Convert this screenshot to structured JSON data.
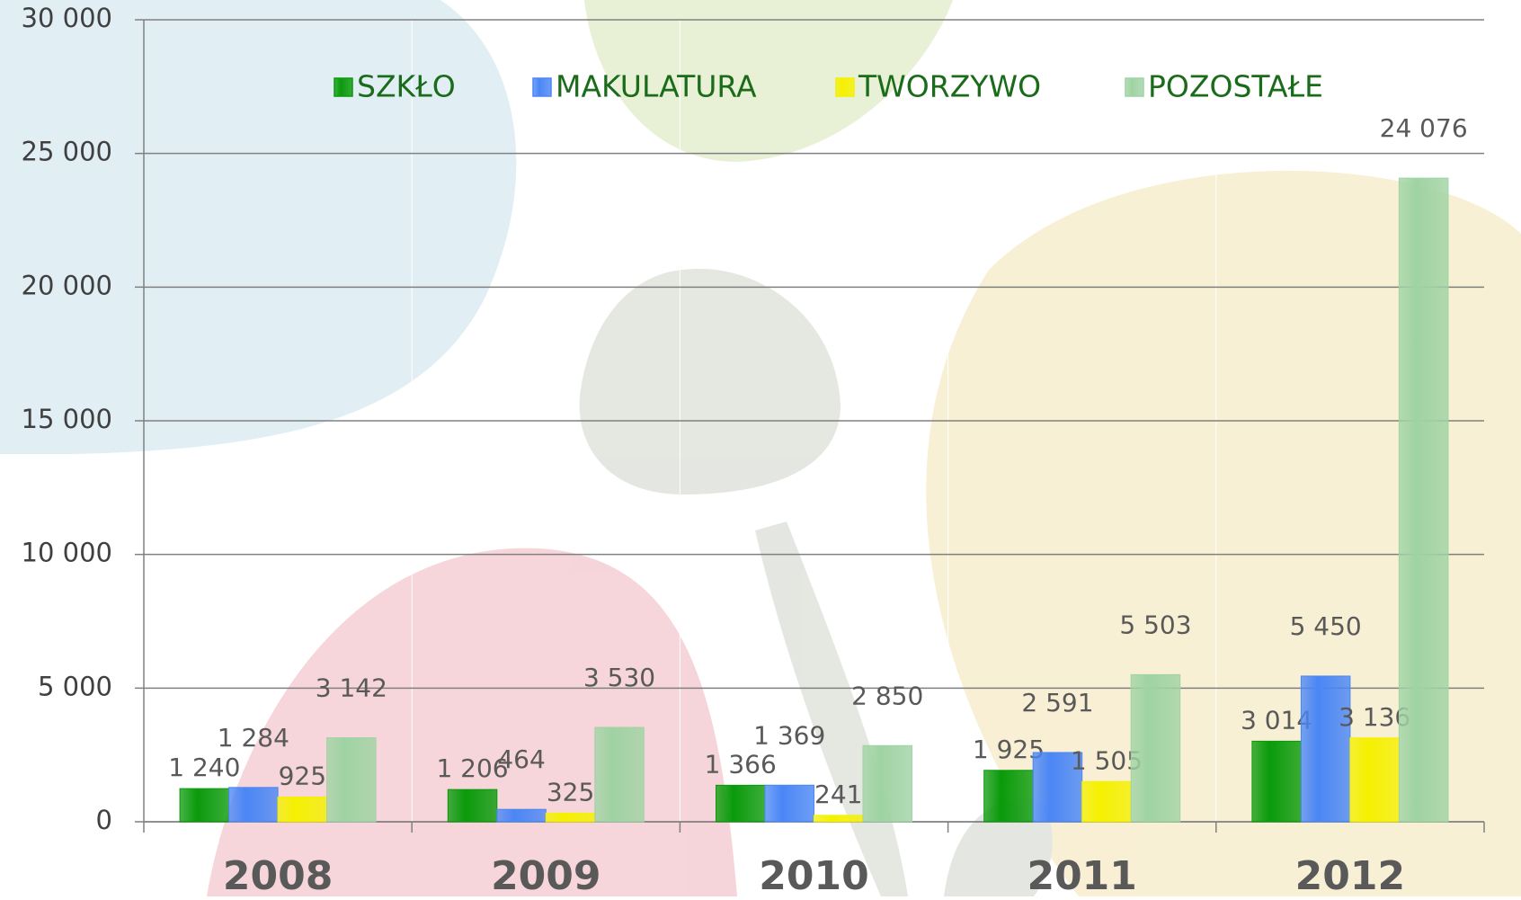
{
  "chart_data": {
    "type": "bar",
    "categories": [
      "2008",
      "2009",
      "2010",
      "2011",
      "2012"
    ],
    "series": [
      {
        "name": "SZKŁO",
        "color": "#0a9a0a",
        "values": [
          1240,
          1206,
          1366,
          1925,
          3014
        ],
        "value_labels": [
          "1 240",
          "1 206",
          "1 366",
          "1 925",
          "3 014"
        ]
      },
      {
        "name": "MAKULATURA",
        "color": "#4a86f5",
        "values": [
          1284,
          464,
          1369,
          2591,
          5450
        ],
        "value_labels": [
          "1 284",
          "464",
          "1 369",
          "2 591",
          "5 450"
        ]
      },
      {
        "name": "TWORZYWO",
        "color": "#f5f000",
        "values": [
          925,
          325,
          241,
          1505,
          3136
        ],
        "value_labels": [
          "925",
          "325",
          "241",
          "1 505",
          "3 136"
        ]
      },
      {
        "name": "POZOSTAŁE",
        "color": "#9fd3a3",
        "values": [
          3142,
          3530,
          2850,
          5503,
          24076
        ],
        "value_labels": [
          "3 142",
          "3 530",
          "2 850",
          "5 503",
          "24 076"
        ]
      }
    ],
    "ylim": [
      0,
      30000
    ],
    "yticks": [
      0,
      {
        "value": 5000,
        "label": "5 000"
      },
      {
        "value": 10000,
        "label": "10 000"
      },
      {
        "value": 15000,
        "label": "15 000"
      },
      {
        "value": 20000,
        "label": "20 000"
      },
      {
        "value": 25000,
        "label": "25 000"
      },
      {
        "value": 30000,
        "label": "30 000"
      }
    ],
    "grid": true,
    "legend": "top"
  }
}
